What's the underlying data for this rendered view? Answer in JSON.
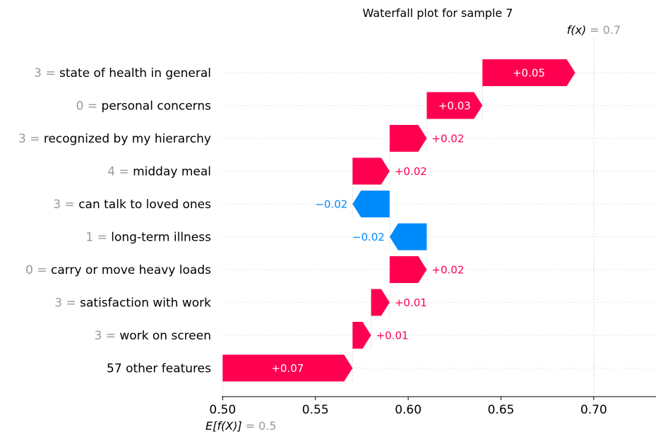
{
  "chart_data": {
    "type": "waterfall",
    "title": "Waterfall plot for sample 7",
    "base_value": 0.5,
    "base_label": "E[f(X)]",
    "base_value_text": "= 0.5",
    "output_value": 0.7,
    "output_label": "f(x)",
    "output_value_text": "= 0.7",
    "features": [
      {
        "value": "3",
        "name": "state of health in general",
        "contribution": 0.05,
        "label": "+0.05"
      },
      {
        "value": "0",
        "name": "personal concerns",
        "contribution": 0.03,
        "label": "+0.03"
      },
      {
        "value": "3",
        "name": "recognized by my hierarchy",
        "contribution": 0.02,
        "label": "+0.02"
      },
      {
        "value": "4",
        "name": "midday meal",
        "contribution": 0.02,
        "label": "+0.02"
      },
      {
        "value": "3",
        "name": "can talk to loved ones",
        "contribution": -0.02,
        "label": "−0.02"
      },
      {
        "value": "1",
        "name": "long-term illness",
        "contribution": -0.02,
        "label": "−0.02"
      },
      {
        "value": "0",
        "name": "carry or move heavy loads",
        "contribution": 0.02,
        "label": "+0.02"
      },
      {
        "value": "3",
        "name": "satisfaction with work",
        "contribution": 0.01,
        "label": "+0.01"
      },
      {
        "value": "3",
        "name": "work on screen",
        "contribution": 0.01,
        "label": "+0.01"
      },
      {
        "value": "",
        "name": "57 other features",
        "contribution": 0.07,
        "label": "+0.07"
      }
    ],
    "xticks": [
      0.5,
      0.55,
      0.6,
      0.65,
      0.7
    ],
    "xtick_labels": [
      "0.50",
      "0.55",
      "0.60",
      "0.65",
      "0.70"
    ],
    "xlim": [
      0.4995,
      0.7335
    ],
    "colors": {
      "positive": "#ff0051",
      "negative": "#008bfb",
      "feature_value": "#999999",
      "text": "#000000",
      "grid": "#cccccc"
    }
  }
}
